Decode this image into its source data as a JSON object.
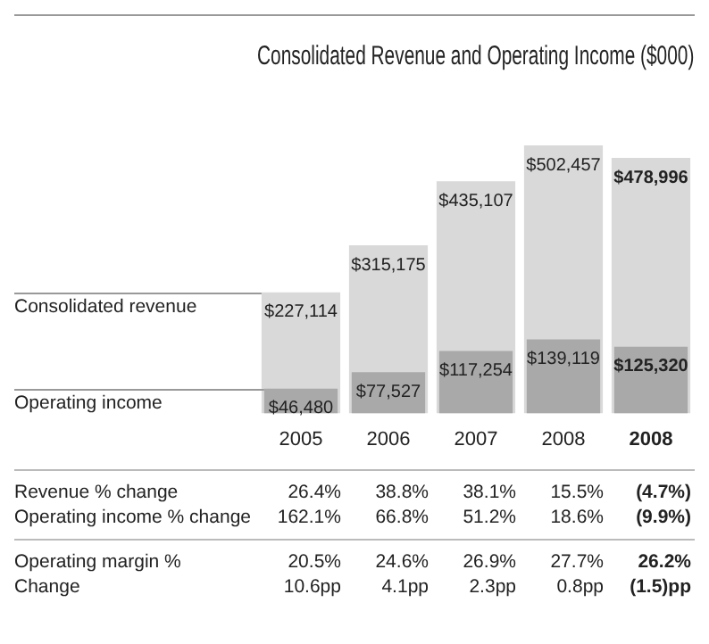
{
  "chart_data": {
    "type": "bar",
    "title": "Consolidated Revenue and Operating Income ($000)",
    "categories": [
      "2005",
      "2006",
      "2007",
      "2008",
      "2008"
    ],
    "series": [
      {
        "name": "Consolidated revenue",
        "color": "#d9d9d9",
        "values": [
          227114,
          315175,
          435107,
          502457,
          478996
        ],
        "value_labels": [
          "$227,114",
          "$315,175",
          "$435,107",
          "$502,457",
          "$478,996"
        ]
      },
      {
        "name": "Operating income",
        "color": "#a9a9a9",
        "values": [
          46480,
          77527,
          117254,
          139119,
          125320
        ],
        "value_labels": [
          "$46,480",
          "$77,527",
          "$117,254",
          "$139,119",
          "$125,320"
        ]
      }
    ],
    "annotations": [
      "Revenue % change",
      "26.4%",
      "38.8%",
      "38.1%",
      "15.5%",
      "(4.7%)",
      "Operating income % change",
      "162.1%",
      "66.8%",
      "51.2%",
      "18.6%",
      "(9.9%)",
      "Operating margin %",
      "20.5%",
      "24.6%",
      "26.9%",
      "27.7%",
      "26.2%",
      "Change",
      "10.6pp",
      "4.1pp",
      "2.3pp",
      "0.8pp",
      "(1.5)pp"
    ],
    "legend": false,
    "grid": false
  }
}
